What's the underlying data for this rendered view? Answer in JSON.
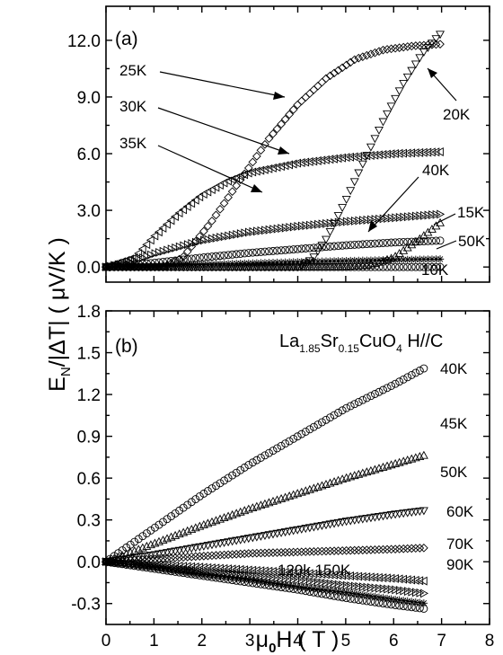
{
  "chart_data": [
    {
      "panel": "(a)",
      "type": "scatter",
      "xlim": [
        0,
        7
      ],
      "ylim": [
        -0.8,
        13.8
      ],
      "yticks": [
        "0.0",
        "3.0",
        "6.0",
        "9.0",
        "12.0"
      ],
      "yticks_values": [
        0,
        3,
        6,
        9,
        12
      ],
      "series": [
        {
          "name": "10K",
          "marker": "circle",
          "points": [
            [
              0,
              0
            ],
            [
              1,
              0
            ],
            [
              2,
              0
            ],
            [
              3,
              0
            ],
            [
              4,
              0
            ],
            [
              5,
              0
            ],
            [
              6,
              0
            ],
            [
              7,
              0
            ]
          ]
        },
        {
          "name": "15K",
          "marker": "triangle-up",
          "points": [
            [
              0,
              0
            ],
            [
              3,
              0.01
            ],
            [
              5,
              0.03
            ],
            [
              5.5,
              0.1
            ],
            [
              6,
              0.5
            ],
            [
              6.5,
              1.4
            ],
            [
              7,
              2.4
            ]
          ]
        },
        {
          "name": "20K",
          "marker": "triangle-down",
          "points": [
            [
              0,
              0
            ],
            [
              4,
              0
            ],
            [
              4.3,
              0.4
            ],
            [
              4.6,
              1.5
            ],
            [
              5.0,
              3.5
            ],
            [
              5.4,
              5.7
            ],
            [
              5.8,
              7.8
            ],
            [
              6.2,
              9.7
            ],
            [
              6.6,
              11.3
            ],
            [
              7,
              12.4
            ]
          ]
        },
        {
          "name": "25K",
          "marker": "diamond",
          "points": [
            [
              0,
              0
            ],
            [
              1.2,
              0
            ],
            [
              1.6,
              0.5
            ],
            [
              2.2,
              2.4
            ],
            [
              2.8,
              4.6
            ],
            [
              3.4,
              6.8
            ],
            [
              4,
              8.6
            ],
            [
              4.6,
              10.0
            ],
            [
              5.2,
              11.0
            ],
            [
              5.8,
              11.5
            ],
            [
              6.4,
              11.7
            ],
            [
              7,
              11.8
            ]
          ]
        },
        {
          "name": "30K",
          "marker": "triangle-left",
          "points": [
            [
              0,
              0
            ],
            [
              0.6,
              0.5
            ],
            [
              1,
              1.6
            ],
            [
              1.5,
              2.8
            ],
            [
              2,
              3.8
            ],
            [
              2.5,
              4.5
            ],
            [
              3,
              5.0
            ],
            [
              4,
              5.5
            ],
            [
              5,
              5.8
            ],
            [
              6,
              6.0
            ],
            [
              7,
              6.1
            ]
          ]
        },
        {
          "name": "35K",
          "marker": "triangle-right",
          "points": [
            [
              0,
              0
            ],
            [
              0.5,
              0.25
            ],
            [
              1,
              0.7
            ],
            [
              2,
              1.4
            ],
            [
              3,
              1.85
            ],
            [
              4,
              2.15
            ],
            [
              5,
              2.4
            ],
            [
              6,
              2.6
            ],
            [
              7,
              2.8
            ]
          ]
        },
        {
          "name": "40K",
          "marker": "circle",
          "points": [
            [
              0,
              0
            ],
            [
              1,
              0.22
            ],
            [
              2,
              0.5
            ],
            [
              3,
              0.75
            ],
            [
              4,
              0.95
            ],
            [
              5,
              1.15
            ],
            [
              6,
              1.3
            ],
            [
              7,
              1.4
            ]
          ]
        },
        {
          "name": "50K",
          "marker": "star",
          "points": [
            [
              0,
              0
            ],
            [
              1,
              0.06
            ],
            [
              2,
              0.13
            ],
            [
              3,
              0.2
            ],
            [
              4,
              0.27
            ],
            [
              5,
              0.33
            ],
            [
              6,
              0.38
            ],
            [
              7,
              0.42
            ]
          ]
        }
      ],
      "labels": [
        "25K",
        "30K",
        "35K",
        "20K",
        "40K",
        "15K",
        "50K",
        "10K"
      ]
    },
    {
      "panel": "(b)",
      "type": "scatter",
      "title_parts": {
        "a": "La",
        "a_sub": "1.85",
        "b": "Sr",
        "b_sub": "0.15",
        "c": "CuO",
        "c_sub": "4",
        "d": " H//C"
      },
      "xlabel_parts": {
        "mu": "μ",
        "sub": "0",
        "rest": "H ( T )"
      },
      "ylabel_parts": {
        "e": "E",
        "sub": "N",
        "rest": "/|ΔT| ( μV/K )"
      },
      "xlim": [
        0,
        8
      ],
      "ylim": [
        -0.45,
        1.8
      ],
      "xticks": [
        "0",
        "1",
        "2",
        "3",
        "4",
        "5",
        "6",
        "7",
        "8"
      ],
      "xticks_values": [
        0,
        1,
        2,
        3,
        4,
        5,
        6,
        7,
        8
      ],
      "yticks": [
        "-0.3",
        "0.0",
        "0.3",
        "0.6",
        "0.9",
        "1.2",
        "1.5",
        "1.8"
      ],
      "yticks_values": [
        -0.3,
        0,
        0.3,
        0.6,
        0.9,
        1.2,
        1.5,
        1.8
      ],
      "series": [
        {
          "name": "40K",
          "marker": "circle",
          "points": [
            [
              0,
              0
            ],
            [
              0.5,
              0.12
            ],
            [
              1,
              0.24
            ],
            [
              2,
              0.48
            ],
            [
              3,
              0.7
            ],
            [
              4,
              0.9
            ],
            [
              5,
              1.1
            ],
            [
              6,
              1.27
            ],
            [
              6.7,
              1.4
            ]
          ]
        },
        {
          "name": "45K",
          "marker": "triangle-up",
          "points": [
            [
              0,
              0
            ],
            [
              1,
              0.13
            ],
            [
              2,
              0.26
            ],
            [
              3,
              0.38
            ],
            [
              4,
              0.49
            ],
            [
              5,
              0.6
            ],
            [
              6,
              0.7
            ],
            [
              6.7,
              0.77
            ]
          ]
        },
        {
          "name": "50K",
          "marker": "triangle-down",
          "points": [
            [
              0,
              0
            ],
            [
              1,
              0.05
            ],
            [
              2,
              0.11
            ],
            [
              3,
              0.17
            ],
            [
              4,
              0.23
            ],
            [
              5,
              0.29
            ],
            [
              6,
              0.34
            ],
            [
              6.7,
              0.37
            ]
          ]
        },
        {
          "name": "60K",
          "marker": "diamond",
          "points": [
            [
              0,
              0
            ],
            [
              1,
              0.02
            ],
            [
              2,
              0.04
            ],
            [
              3,
              0.06
            ],
            [
              4,
              0.07
            ],
            [
              5,
              0.08
            ],
            [
              6,
              0.09
            ],
            [
              6.7,
              0.1
            ]
          ]
        },
        {
          "name": "70K",
          "marker": "triangle-left",
          "points": [
            [
              0,
              0
            ],
            [
              1,
              -0.02
            ],
            [
              2,
              -0.04
            ],
            [
              3,
              -0.06
            ],
            [
              4,
              -0.08
            ],
            [
              5,
              -0.1
            ],
            [
              6,
              -0.12
            ],
            [
              6.7,
              -0.14
            ]
          ]
        },
        {
          "name": "90K",
          "marker": "triangle-right",
          "points": [
            [
              0,
              0
            ],
            [
              1,
              -0.03
            ],
            [
              2,
              -0.07
            ],
            [
              3,
              -0.1
            ],
            [
              4,
              -0.13
            ],
            [
              5,
              -0.17
            ],
            [
              6,
              -0.2
            ],
            [
              6.7,
              -0.23
            ]
          ]
        },
        {
          "name": "120K",
          "marker": "star",
          "points": [
            [
              0,
              0
            ],
            [
              1,
              -0.04
            ],
            [
              2,
              -0.09
            ],
            [
              3,
              -0.13
            ],
            [
              4,
              -0.18
            ],
            [
              5,
              -0.22
            ],
            [
              6,
              -0.27
            ],
            [
              6.7,
              -0.3
            ]
          ]
        },
        {
          "name": "150K",
          "marker": "circle",
          "points": [
            [
              0,
              0
            ],
            [
              1,
              -0.05
            ],
            [
              2,
              -0.1
            ],
            [
              3,
              -0.15
            ],
            [
              4,
              -0.2
            ],
            [
              5,
              -0.26
            ],
            [
              6,
              -0.31
            ],
            [
              6.7,
              -0.34
            ]
          ]
        }
      ],
      "labels": [
        "40K",
        "45K",
        "50K",
        "60K",
        "70K",
        "90K",
        "120k 150K"
      ]
    }
  ]
}
